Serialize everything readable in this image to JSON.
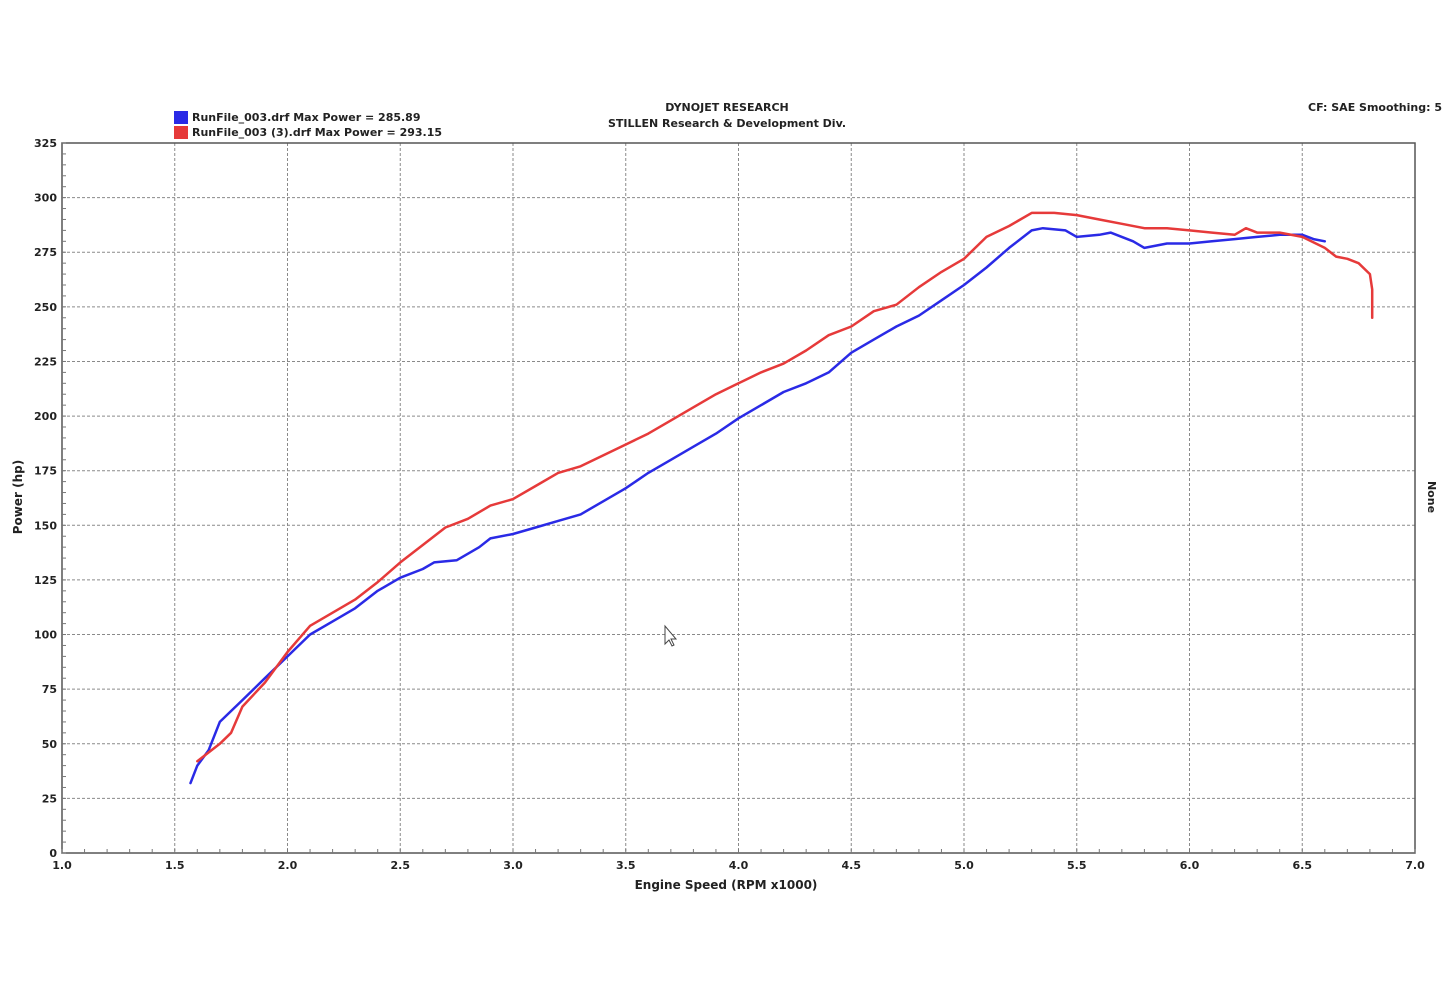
{
  "chart_data": {
    "type": "line",
    "title": "DYNOJET RESEARCH",
    "subtitle": "STILLEN Research & Development Div.",
    "correction_label": "CF: SAE  Smoothing: 5",
    "xlabel": "Engine Speed (RPM x1000)",
    "ylabel": "Power (hp)",
    "y2label": "None",
    "xlim": [
      1.0,
      7.0
    ],
    "ylim": [
      0,
      325
    ],
    "xticks": [
      "1.0",
      "1.5",
      "2.0",
      "2.5",
      "3.0",
      "3.5",
      "4.0",
      "4.5",
      "5.0",
      "5.5",
      "6.0",
      "6.5",
      "7.0"
    ],
    "yticks": [
      "0",
      "25",
      "50",
      "75",
      "100",
      "125",
      "150",
      "175",
      "200",
      "225",
      "250",
      "275",
      "300",
      "325"
    ],
    "grid": true,
    "legend_position": "top-left",
    "series": [
      {
        "name": "RunFile_003.drf Max Power = 285.89",
        "color": "#2a2ae6",
        "points": [
          [
            1.57,
            32
          ],
          [
            1.6,
            40
          ],
          [
            1.65,
            47
          ],
          [
            1.7,
            60
          ],
          [
            1.8,
            70
          ],
          [
            1.9,
            80
          ],
          [
            2.0,
            90
          ],
          [
            2.1,
            100
          ],
          [
            2.2,
            106
          ],
          [
            2.3,
            112
          ],
          [
            2.4,
            120
          ],
          [
            2.5,
            126
          ],
          [
            2.6,
            130
          ],
          [
            2.65,
            133
          ],
          [
            2.75,
            134
          ],
          [
            2.85,
            140
          ],
          [
            2.9,
            144
          ],
          [
            3.0,
            146
          ],
          [
            3.1,
            149
          ],
          [
            3.2,
            152
          ],
          [
            3.3,
            155
          ],
          [
            3.4,
            161
          ],
          [
            3.5,
            167
          ],
          [
            3.6,
            174
          ],
          [
            3.7,
            180
          ],
          [
            3.8,
            186
          ],
          [
            3.9,
            192
          ],
          [
            4.0,
            199
          ],
          [
            4.1,
            205
          ],
          [
            4.2,
            211
          ],
          [
            4.3,
            215
          ],
          [
            4.4,
            220
          ],
          [
            4.5,
            229
          ],
          [
            4.6,
            235
          ],
          [
            4.7,
            241
          ],
          [
            4.8,
            246
          ],
          [
            4.9,
            253
          ],
          [
            5.0,
            260
          ],
          [
            5.1,
            268
          ],
          [
            5.2,
            277
          ],
          [
            5.3,
            285
          ],
          [
            5.35,
            286
          ],
          [
            5.45,
            285
          ],
          [
            5.5,
            282
          ],
          [
            5.6,
            283
          ],
          [
            5.65,
            284
          ],
          [
            5.75,
            280
          ],
          [
            5.8,
            277
          ],
          [
            5.9,
            279
          ],
          [
            6.0,
            279
          ],
          [
            6.1,
            280
          ],
          [
            6.2,
            281
          ],
          [
            6.3,
            282
          ],
          [
            6.4,
            283
          ],
          [
            6.5,
            283
          ],
          [
            6.55,
            281
          ],
          [
            6.6,
            280
          ]
        ]
      },
      {
        "name": "RunFile_003 (3).drf Max Power = 293.15",
        "color": "#e63a3a",
        "points": [
          [
            1.6,
            42
          ],
          [
            1.7,
            50
          ],
          [
            1.75,
            55
          ],
          [
            1.8,
            67
          ],
          [
            1.9,
            78
          ],
          [
            2.0,
            92
          ],
          [
            2.1,
            104
          ],
          [
            2.2,
            110
          ],
          [
            2.3,
            116
          ],
          [
            2.4,
            124
          ],
          [
            2.5,
            133
          ],
          [
            2.6,
            141
          ],
          [
            2.7,
            149
          ],
          [
            2.8,
            153
          ],
          [
            2.9,
            159
          ],
          [
            3.0,
            162
          ],
          [
            3.1,
            168
          ],
          [
            3.2,
            174
          ],
          [
            3.3,
            177
          ],
          [
            3.4,
            182
          ],
          [
            3.5,
            187
          ],
          [
            3.6,
            192
          ],
          [
            3.7,
            198
          ],
          [
            3.8,
            204
          ],
          [
            3.9,
            210
          ],
          [
            4.0,
            215
          ],
          [
            4.1,
            220
          ],
          [
            4.2,
            224
          ],
          [
            4.3,
            230
          ],
          [
            4.4,
            237
          ],
          [
            4.5,
            241
          ],
          [
            4.6,
            248
          ],
          [
            4.7,
            251
          ],
          [
            4.8,
            259
          ],
          [
            4.9,
            266
          ],
          [
            5.0,
            272
          ],
          [
            5.1,
            282
          ],
          [
            5.2,
            287
          ],
          [
            5.3,
            293
          ],
          [
            5.4,
            293
          ],
          [
            5.5,
            292
          ],
          [
            5.6,
            290
          ],
          [
            5.7,
            288
          ],
          [
            5.8,
            286
          ],
          [
            5.9,
            286
          ],
          [
            6.0,
            285
          ],
          [
            6.1,
            284
          ],
          [
            6.2,
            283
          ],
          [
            6.25,
            286
          ],
          [
            6.3,
            284
          ],
          [
            6.4,
            284
          ],
          [
            6.5,
            282
          ],
          [
            6.6,
            277
          ],
          [
            6.65,
            273
          ],
          [
            6.7,
            272
          ],
          [
            6.75,
            270
          ],
          [
            6.8,
            265
          ],
          [
            6.81,
            258
          ],
          [
            6.81,
            245
          ]
        ]
      }
    ]
  }
}
